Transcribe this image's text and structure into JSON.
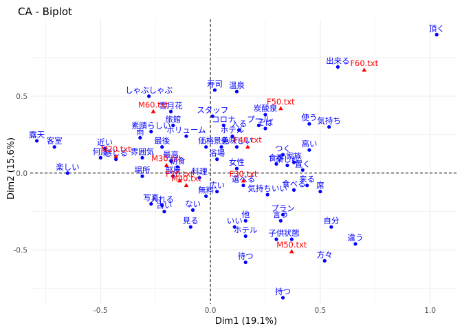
{
  "chart_data": {
    "type": "scatter",
    "title": "CA - Biplot",
    "xlabel": "Dim1 (19.1%)",
    "ylabel": "Dim2 (15.6%)",
    "xlim": [
      -0.82,
      1.12
    ],
    "ylim": [
      -0.85,
      1.0
    ],
    "xticks": [
      -0.5,
      0.0,
      0.5,
      1.0
    ],
    "xtick_labels": [
      "-0.5",
      "0.0",
      "0.5",
      "1.0"
    ],
    "yticks": [
      -0.5,
      0.0,
      0.5
    ],
    "ytick_labels": [
      "-0.5",
      "0.0",
      "0.5"
    ],
    "grid": true,
    "reference_lines": {
      "x": 0,
      "y": 0,
      "style": "dashed"
    },
    "colors": {
      "rows": "#0000ff",
      "columns": "#ff0000",
      "grid": "#ebebeb",
      "ref": "#000000"
    },
    "series": [
      {
        "marker": "circle",
        "points": [
          {
            "label": "頂く",
            "x": 1.03,
            "y": 0.9
          },
          {
            "label": "出来る",
            "x": 0.58,
            "y": 0.69
          },
          {
            "label": "寿司",
            "x": 0.02,
            "y": 0.54
          },
          {
            "label": "温泉",
            "x": 0.12,
            "y": 0.53
          },
          {
            "label": "しゃぶしゃぶ",
            "x": -0.28,
            "y": 0.5
          },
          {
            "label": "雪月花",
            "x": -0.18,
            "y": 0.4
          },
          {
            "label": "スタッフ",
            "x": 0.01,
            "y": 0.37
          },
          {
            "label": "炭酸泉",
            "x": 0.25,
            "y": 0.38
          },
          {
            "label": "気持ち",
            "x": 0.54,
            "y": 0.3
          },
          {
            "label": "使う",
            "x": 0.45,
            "y": 0.32
          },
          {
            "label": "コロナ",
            "x": 0.06,
            "y": 0.31
          },
          {
            "label": "プール",
            "x": 0.22,
            "y": 0.31
          },
          {
            "label": "素晴らしい",
            "x": -0.27,
            "y": 0.27
          },
          {
            "label": "旅館",
            "x": -0.17,
            "y": 0.31
          },
          {
            "label": "入る",
            "x": 0.13,
            "y": 0.28
          },
          {
            "label": "そば",
            "x": 0.25,
            "y": 0.29
          },
          {
            "label": "露天",
            "x": -0.79,
            "y": 0.21
          },
          {
            "label": "客室",
            "x": -0.71,
            "y": 0.17
          },
          {
            "label": "雨",
            "x": -0.32,
            "y": 0.23
          },
          {
            "label": "ボリューム",
            "x": -0.11,
            "y": 0.24
          },
          {
            "label": "ホテル",
            "x": 0.1,
            "y": 0.24
          },
          {
            "label": "最後",
            "x": -0.22,
            "y": 0.17
          },
          {
            "label": "価格",
            "x": -0.02,
            "y": 0.17
          },
          {
            "label": "景色",
            "x": 0.05,
            "y": 0.17
          },
          {
            "label": "美味しい",
            "x": 0.12,
            "y": 0.17
          },
          {
            "label": "高い",
            "x": 0.45,
            "y": 0.15
          },
          {
            "label": "つく",
            "x": 0.33,
            "y": 0.12
          },
          {
            "label": "家族",
            "x": 0.38,
            "y": 0.07
          },
          {
            "label": "近い",
            "x": -0.48,
            "y": 0.16
          },
          {
            "label": "何度",
            "x": -0.5,
            "y": 0.1
          },
          {
            "label": "感じる",
            "x": -0.43,
            "y": 0.09
          },
          {
            "label": "楽しい",
            "x": -0.65,
            "y": 0.0
          },
          {
            "label": "最高",
            "x": -0.18,
            "y": 0.08
          },
          {
            "label": "雰囲気",
            "x": -0.31,
            "y": 0.1
          },
          {
            "label": "浴場",
            "x": 0.03,
            "y": 0.09
          },
          {
            "label": "女性",
            "x": 0.12,
            "y": 0.03
          },
          {
            "label": "食事",
            "x": 0.3,
            "y": 0.06
          },
          {
            "label": "楽しむ",
            "x": 0.35,
            "y": 0.05
          },
          {
            "label": "置く",
            "x": 0.42,
            "y": 0.02
          },
          {
            "label": "朝食",
            "x": -0.15,
            "y": 0.04
          },
          {
            "label": "部屋",
            "x": -0.17,
            "y": -0.02
          },
          {
            "label": "場所",
            "x": -0.31,
            "y": -0.02
          },
          {
            "label": "料理",
            "x": -0.05,
            "y": -0.03
          },
          {
            "label": "選べる",
            "x": 0.15,
            "y": -0.08
          },
          {
            "label": "気持ちいい",
            "x": 0.26,
            "y": -0.14
          },
          {
            "label": "食べる",
            "x": 0.38,
            "y": -0.11
          },
          {
            "label": "来る",
            "x": 0.44,
            "y": -0.08
          },
          {
            "label": "席",
            "x": 0.5,
            "y": -0.12
          },
          {
            "label": "無料",
            "x": -0.02,
            "y": -0.15
          },
          {
            "label": "広い",
            "x": 0.03,
            "y": -0.12
          },
          {
            "label": "写真",
            "x": -0.27,
            "y": -0.2
          },
          {
            "label": "入れる",
            "x": -0.22,
            "y": -0.21
          },
          {
            "label": "古い",
            "x": -0.21,
            "y": -0.25
          },
          {
            "label": "ない",
            "x": -0.08,
            "y": -0.24
          },
          {
            "label": "プラン",
            "x": 0.33,
            "y": -0.27
          },
          {
            "label": "言う",
            "x": 0.32,
            "y": -0.31
          },
          {
            "label": "いい",
            "x": 0.11,
            "y": -0.35
          },
          {
            "label": "他",
            "x": 0.16,
            "y": -0.31
          },
          {
            "label": "ホテル",
            "x": 0.16,
            "y": -0.41
          },
          {
            "label": "自分",
            "x": 0.55,
            "y": -0.35
          },
          {
            "label": "見る",
            "x": -0.09,
            "y": -0.35
          },
          {
            "label": "子供",
            "x": 0.3,
            "y": -0.43
          },
          {
            "label": "状態",
            "x": 0.37,
            "y": -0.43
          },
          {
            "label": "違う",
            "x": 0.66,
            "y": -0.46
          },
          {
            "label": "待つ",
            "x": 0.16,
            "y": -0.58
          },
          {
            "label": "方々",
            "x": 0.52,
            "y": -0.57
          },
          {
            "label": "持つ",
            "x": 0.33,
            "y": -0.81
          }
        ]
      },
      {
        "marker": "triangle",
        "points": [
          {
            "label": "F60.txt",
            "x": 0.7,
            "y": 0.67
          },
          {
            "label": "M60.txt",
            "x": -0.26,
            "y": 0.4
          },
          {
            "label": "F50.txt",
            "x": 0.32,
            "y": 0.42
          },
          {
            "label": "F40.txt",
            "x": 0.17,
            "y": 0.17
          },
          {
            "label": "M20.txt",
            "x": -0.43,
            "y": 0.11
          },
          {
            "label": "M30.txt",
            "x": -0.2,
            "y": 0.05
          },
          {
            "label": "F30.txt",
            "x": 0.15,
            "y": -0.05
          },
          {
            "label": "M40.txt",
            "x": -0.11,
            "y": -0.08
          },
          {
            "label": "F20.txt",
            "x": -0.14,
            "y": -0.05
          },
          {
            "label": "M50.txt",
            "x": 0.37,
            "y": -0.51
          }
        ]
      }
    ]
  }
}
